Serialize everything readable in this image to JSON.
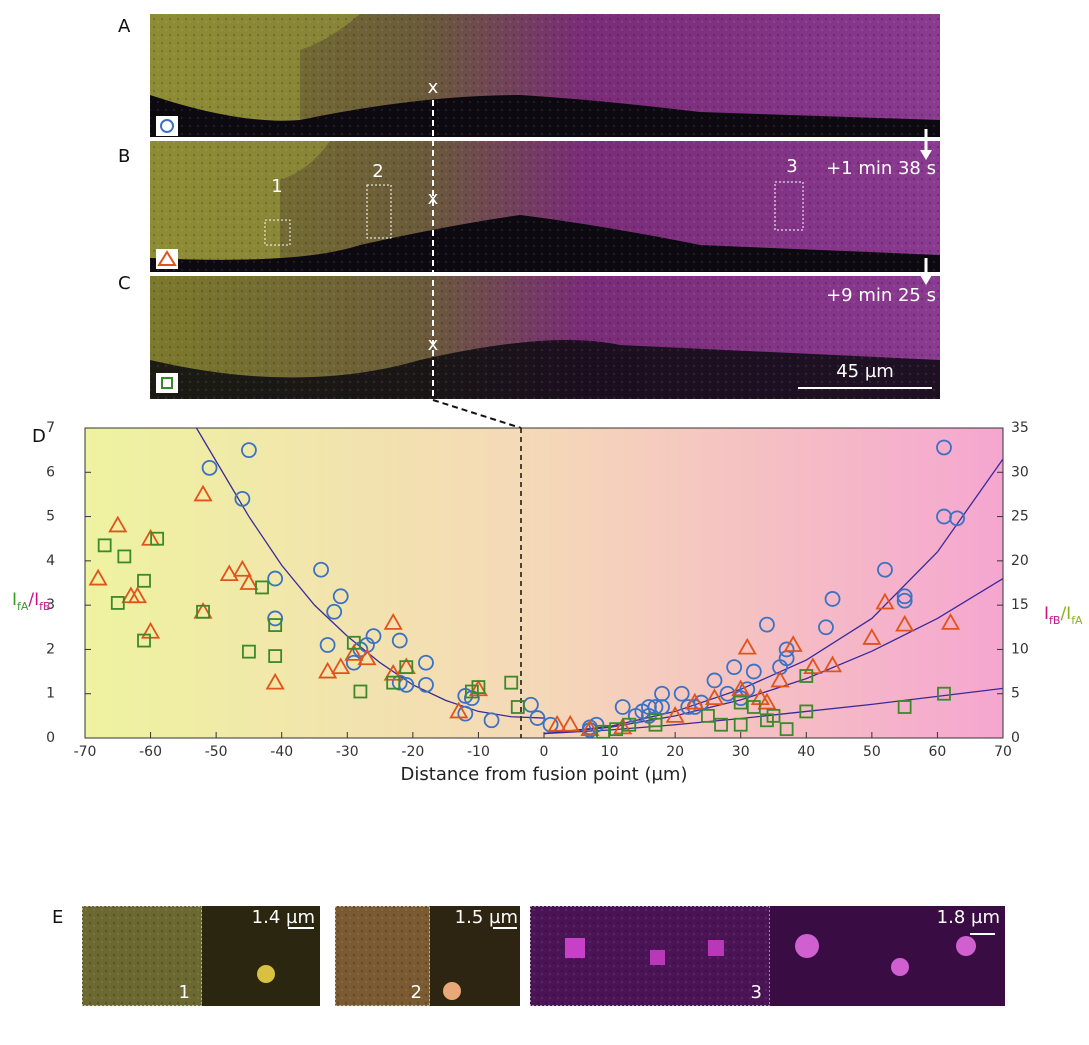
{
  "image_panels": {
    "labels": [
      "A",
      "B",
      "C"
    ],
    "cut_marks": [
      "x",
      "x",
      "x"
    ],
    "box_labels": [
      "1",
      "2",
      "3"
    ],
    "times": [
      "+1 min 38 s",
      "+9 min 25 s"
    ],
    "scale_bar": "45 µm"
  },
  "chart_label": "D",
  "chart_data": {
    "type": "scatter",
    "xlabel": "Distance from fusion point (µm)",
    "ylabel": [
      {
        "text": "I",
        "color": "#3a9a2a"
      },
      {
        "text": "fA",
        "color": "#3a9a2a",
        "sub": true
      },
      {
        "text": "/",
        "color": "#c8148c"
      },
      {
        "text": "I",
        "color": "#c8148c"
      },
      {
        "text": "fB",
        "color": "#c8148c",
        "sub": true
      }
    ],
    "y2label": [
      {
        "text": "I",
        "color": "#c8148c"
      },
      {
        "text": "fB",
        "color": "#c8148c",
        "sub": true
      },
      {
        "text": "/",
        "color": "#8ab020"
      },
      {
        "text": "I",
        "color": "#8ab020"
      },
      {
        "text": "fA",
        "color": "#8ab020",
        "sub": true
      }
    ],
    "xlim": [
      -70,
      70
    ],
    "xticks": [
      -70,
      -60,
      -50,
      -40,
      -30,
      -20,
      -10,
      0,
      10,
      20,
      30,
      40,
      50,
      60,
      70
    ],
    "ylim": [
      0,
      7
    ],
    "yticks": [
      0,
      1,
      2,
      3,
      4,
      5,
      6,
      7
    ],
    "y2lim": [
      0,
      35
    ],
    "y2ticks": [
      0,
      5,
      10,
      15,
      20,
      25,
      30,
      35
    ],
    "series": [
      {
        "marker": "circle",
        "color": "#3c72c4",
        "axis": "y",
        "x": [
          -51,
          -45,
          -46,
          -41,
          -41,
          -34,
          -31,
          -32,
          -33,
          -29,
          -28,
          -27,
          -26,
          -22,
          -22,
          -21,
          -18,
          -18,
          -12,
          -12,
          -11,
          -8,
          -2,
          -1
        ],
        "values": [
          6.1,
          6.5,
          5.4,
          3.6,
          2.7,
          3.8,
          3.2,
          2.85,
          2.1,
          1.7,
          2.0,
          2.1,
          2.3,
          2.2,
          1.25,
          1.2,
          1.7,
          1.2,
          0.95,
          0.55,
          0.9,
          0.4,
          0.75,
          0.45
        ]
      },
      {
        "marker": "circle",
        "color": "#3c72c4",
        "axis": "y2",
        "x": [
          1,
          7,
          7,
          8,
          12,
          14,
          15,
          16,
          16,
          17,
          18,
          18,
          21,
          22,
          23,
          24,
          26,
          28,
          29,
          30,
          31,
          32,
          34,
          36,
          37,
          37,
          43,
          44,
          52,
          55,
          55,
          61,
          61,
          63
        ],
        "values": [
          1.5,
          0.9,
          1.2,
          1.5,
          3.5,
          2.5,
          3,
          3.5,
          2.5,
          3.5,
          5,
          3.5,
          5,
          3.5,
          3.5,
          4,
          6.5,
          5,
          8,
          4.5,
          5.5,
          7.5,
          12.8,
          8,
          9,
          10,
          12.5,
          15.7,
          19,
          15.5,
          16,
          25,
          32.8,
          24.8
        ]
      },
      {
        "marker": "triangle",
        "color": "#e0541c",
        "axis": "y",
        "x": [
          -68,
          -65,
          -63,
          -62,
          -60,
          -60,
          -52,
          -52,
          -48,
          -46,
          -45,
          -41,
          -33,
          -31,
          -29,
          -27,
          -23,
          -23,
          -21,
          -13,
          -10
        ],
        "values": [
          3.6,
          4.8,
          3.2,
          3.2,
          4.5,
          2.4,
          5.5,
          2.85,
          3.7,
          3.8,
          3.5,
          1.25,
          1.5,
          1.6,
          1.9,
          1.8,
          2.6,
          1.45,
          1.6,
          0.6,
          1.1
        ]
      },
      {
        "marker": "triangle",
        "color": "#e0541c",
        "axis": "y2",
        "x": [
          2,
          4,
          7,
          12,
          20,
          23,
          26,
          30,
          31,
          33,
          34,
          36,
          38,
          41,
          44,
          50,
          52,
          55,
          62
        ],
        "values": [
          1.5,
          1.5,
          1,
          1.2,
          2.5,
          4,
          4.5,
          5.5,
          10.2,
          4.5,
          4,
          6.5,
          10.5,
          8,
          8.2,
          11.3,
          15.3,
          12.8,
          13
        ]
      },
      {
        "marker": "square",
        "color": "#3a8a2a",
        "axis": "y",
        "x": [
          -67,
          -64,
          -65,
          -61,
          -61,
          -59,
          -52,
          -45,
          -43,
          -41,
          -41,
          -29,
          -28,
          -23,
          -21,
          -11,
          -10,
          -5,
          -4
        ],
        "values": [
          4.35,
          4.1,
          3.05,
          3.55,
          2.2,
          4.5,
          2.85,
          1.95,
          3.4,
          2.55,
          1.85,
          2.15,
          1.05,
          1.25,
          1.6,
          1.05,
          1.15,
          1.25,
          0.7
        ]
      },
      {
        "marker": "square",
        "color": "#3a8a2a",
        "axis": "y2",
        "x": [
          9,
          11,
          13,
          17,
          17,
          25,
          27,
          30,
          30,
          32,
          34,
          35,
          37,
          40,
          40,
          55,
          61
        ],
        "values": [
          0.7,
          1,
          1.5,
          1.5,
          2,
          2.5,
          1.5,
          1.5,
          4,
          3.5,
          2,
          2.5,
          1,
          3,
          7,
          3.5,
          5
        ]
      }
    ],
    "fits": [
      {
        "color": "#3a2a9a",
        "axis": "y",
        "x": [
          -53,
          -45,
          -40,
          -35,
          -30,
          -25,
          -20,
          -15,
          -10,
          -5,
          0
        ],
        "values": [
          7,
          5.0,
          3.9,
          3.0,
          2.3,
          1.7,
          1.2,
          0.85,
          0.6,
          0.48,
          0.45
        ]
      },
      {
        "color": "#3a2a9a",
        "axis": "y2",
        "x": [
          0,
          10,
          20,
          30,
          40,
          50,
          60,
          70
        ],
        "values": [
          0.5,
          1.3,
          3,
          5.5,
          8.8,
          13.5,
          21,
          31.5
        ]
      },
      {
        "color": "#3a2a9a",
        "axis": "y2",
        "x": [
          0,
          10,
          20,
          30,
          40,
          50,
          60,
          70
        ],
        "values": [
          0.5,
          1.2,
          2.5,
          4.3,
          6.7,
          9.8,
          13.5,
          18
        ]
      },
      {
        "color": "#3a2a9a",
        "axis": "y2",
        "x": [
          0,
          10,
          20,
          30,
          40,
          50,
          60,
          70
        ],
        "values": [
          0.5,
          0.9,
          1.5,
          2.2,
          3,
          3.8,
          4.7,
          5.6
        ]
      }
    ]
  },
  "zoom_panels": {
    "label": "E",
    "numbers": [
      "1",
      "2",
      "3"
    ],
    "scales": [
      "1.4 µm",
      "1.5 µm",
      "1.8 µm"
    ]
  }
}
